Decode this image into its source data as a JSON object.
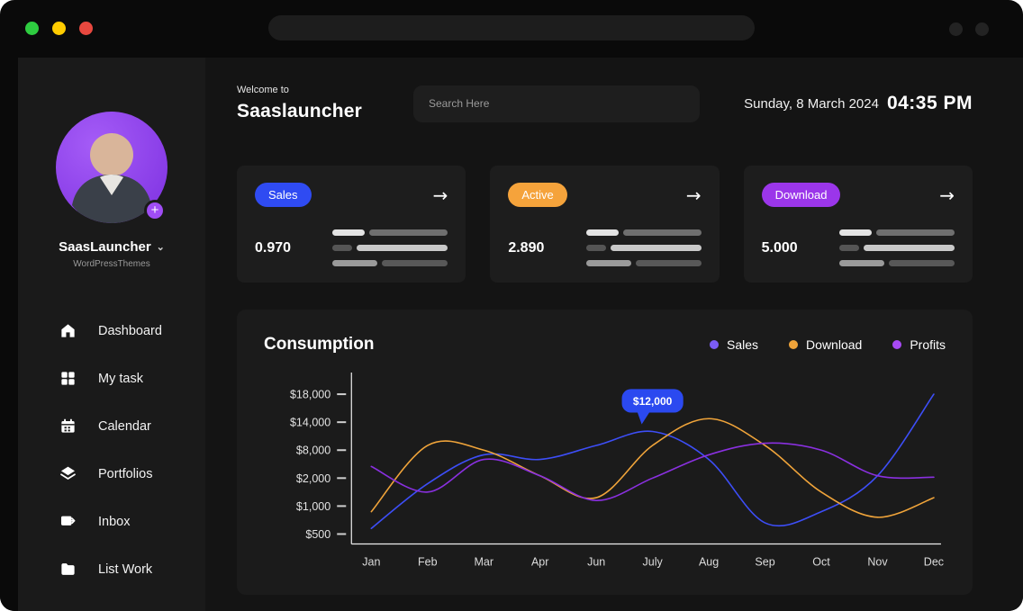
{
  "window": {
    "traffic_lights": [
      {
        "name": "green",
        "color": "#2ecc40"
      },
      {
        "name": "yellow",
        "color": "#ffcc00"
      },
      {
        "name": "red",
        "color": "#e8483f"
      }
    ]
  },
  "icons": {
    "arrow_right": "→",
    "chevron_down": "⌄",
    "plus": "+"
  },
  "sidebar": {
    "profile": {
      "name": "SaasLauncher",
      "subtitle": "WordPressThemes"
    },
    "items": [
      {
        "label": "Dashboard",
        "icon": "home-icon"
      },
      {
        "label": "My task",
        "icon": "grid-icon"
      },
      {
        "label": "Calendar",
        "icon": "calendar-icon"
      },
      {
        "label": "Portfolios",
        "icon": "layers-icon"
      },
      {
        "label": "Inbox",
        "icon": "send-icon"
      },
      {
        "label": "List Work",
        "icon": "folder-icon"
      }
    ]
  },
  "header": {
    "welcome": "Welcome to",
    "app_name": "Saaslauncher",
    "search_placeholder": "Search Here",
    "date": "Sunday, 8 March 2024",
    "time": "04:35 PM"
  },
  "stats": [
    {
      "badge": "Sales",
      "badge_color": "#2f4bf2",
      "value": "0.970"
    },
    {
      "badge": "Active",
      "badge_color": "#f5a33b",
      "value": "2.890"
    },
    {
      "badge": "Download",
      "badge_color": "#9b36ea",
      "value": "5.000"
    }
  ],
  "chart_data": {
    "type": "line",
    "title": "Consumption",
    "categories": [
      "Jan",
      "Feb",
      "Mar",
      "Apr",
      "Jun",
      "July",
      "Aug",
      "Sep",
      "Oct",
      "Nov",
      "Dec"
    ],
    "y_ticks": [
      500,
      1000,
      2000,
      8000,
      14000,
      18000
    ],
    "y_tick_labels": [
      "$500",
      "$1,000",
      "$2,000",
      "$8,000",
      "$14,000",
      "$18,000"
    ],
    "legend": [
      {
        "name": "Sales",
        "color": "#7b5cf7"
      },
      {
        "name": "Download",
        "color": "#f0a43a"
      },
      {
        "name": "Profits",
        "color": "#a84af5"
      }
    ],
    "series": [
      {
        "name": "Sales",
        "color": "#3d4ef7",
        "values": [
          600,
          1800,
          7000,
          6000,
          9000,
          12000,
          6000,
          700,
          900,
          2500,
          18000
        ]
      },
      {
        "name": "Download",
        "color": "#f0a43a",
        "values": [
          900,
          9000,
          8000,
          2500,
          1300,
          9000,
          14500,
          9000,
          1500,
          800,
          1300
        ]
      },
      {
        "name": "Profits",
        "color": "#8a30e0",
        "values": [
          4500,
          1500,
          6000,
          2500,
          1200,
          2000,
          7000,
          9500,
          8000,
          2500,
          2200
        ]
      }
    ],
    "tooltip": {
      "label": "$12,000",
      "series": "Sales",
      "category": "July",
      "color": "#2b49f0"
    }
  }
}
